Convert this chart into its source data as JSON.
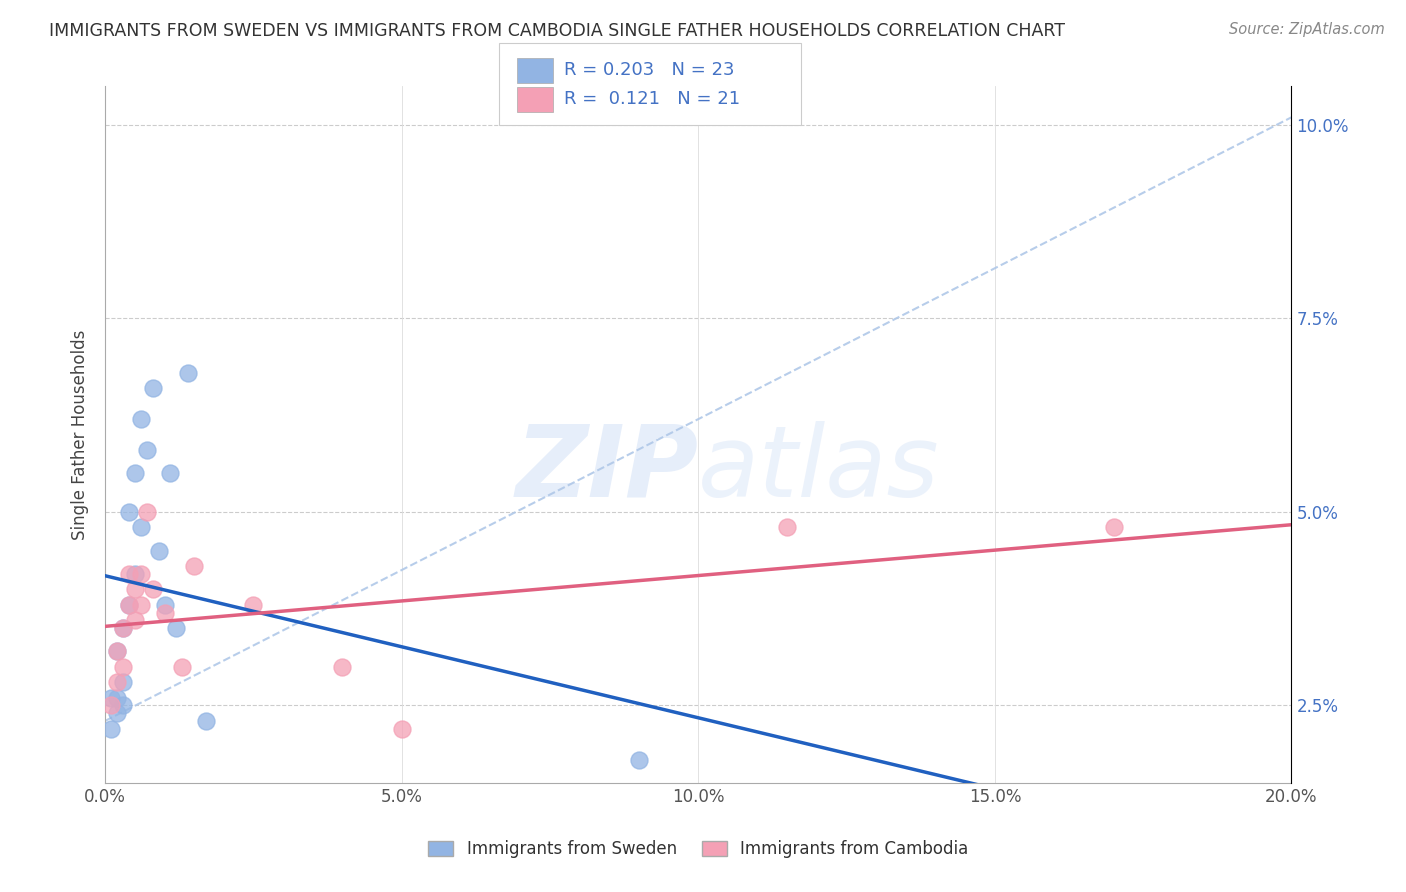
{
  "title": "IMMIGRANTS FROM SWEDEN VS IMMIGRANTS FROM CAMBODIA SINGLE FATHER HOUSEHOLDS CORRELATION CHART",
  "source": "Source: ZipAtlas.com",
  "ylabel": "Single Father Households",
  "xlim": [
    0.0,
    0.2
  ],
  "ylim": [
    0.015,
    0.105
  ],
  "sweden_color": "#92b4e3",
  "cambodia_color": "#f4a0b5",
  "sweden_line_color": "#2060c0",
  "cambodia_line_color": "#e06080",
  "trend_line_color": "#b0c8e8",
  "R_sweden": 0.203,
  "N_sweden": 23,
  "R_cambodia": 0.121,
  "N_cambodia": 21,
  "sweden_x": [
    0.001,
    0.001,
    0.002,
    0.002,
    0.002,
    0.003,
    0.003,
    0.003,
    0.004,
    0.004,
    0.005,
    0.005,
    0.006,
    0.006,
    0.007,
    0.008,
    0.009,
    0.01,
    0.011,
    0.012,
    0.014,
    0.017,
    0.09
  ],
  "sweden_y": [
    0.022,
    0.026,
    0.024,
    0.026,
    0.032,
    0.025,
    0.028,
    0.035,
    0.038,
    0.05,
    0.042,
    0.055,
    0.048,
    0.062,
    0.058,
    0.066,
    0.045,
    0.038,
    0.055,
    0.035,
    0.068,
    0.023,
    0.018
  ],
  "cambodia_x": [
    0.001,
    0.002,
    0.002,
    0.003,
    0.003,
    0.004,
    0.004,
    0.005,
    0.005,
    0.006,
    0.006,
    0.007,
    0.008,
    0.01,
    0.013,
    0.015,
    0.025,
    0.04,
    0.05,
    0.115,
    0.17
  ],
  "cambodia_y": [
    0.025,
    0.028,
    0.032,
    0.03,
    0.035,
    0.038,
    0.042,
    0.036,
    0.04,
    0.038,
    0.042,
    0.05,
    0.04,
    0.037,
    0.03,
    0.043,
    0.038,
    0.03,
    0.022,
    0.048,
    0.048
  ],
  "watermark": "ZIPatlas",
  "legend_label_sweden": "Immigrants from Sweden",
  "legend_label_cambodia": "Immigrants from Cambodia"
}
